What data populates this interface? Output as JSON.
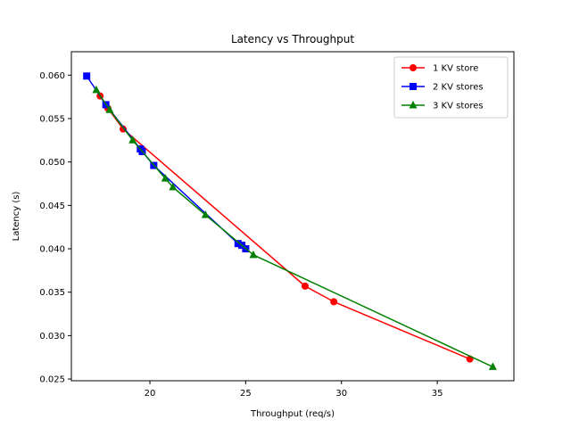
{
  "chart_data": {
    "type": "line",
    "title": "Latency vs Throughput",
    "xlabel": "Throughput (req/s)",
    "ylabel": "Latency (s)",
    "xlim": [
      15.9,
      39.0
    ],
    "ylim": [
      0.0248,
      0.0627
    ],
    "xticks": [
      20,
      25,
      30,
      35
    ],
    "xtick_labels": [
      "20",
      "25",
      "30",
      "35"
    ],
    "yticks": [
      0.025,
      0.03,
      0.035,
      0.04,
      0.045,
      0.05,
      0.055,
      0.06
    ],
    "ytick_labels": [
      "0.025",
      "0.030",
      "0.035",
      "0.040",
      "0.045",
      "0.050",
      "0.055",
      "0.060"
    ],
    "grid": false,
    "legend_position": "top-right",
    "series": [
      {
        "name": "1 KV store",
        "color": "#ff0000",
        "marker": "circle",
        "points": [
          {
            "x": 17.4,
            "y": 0.0576
          },
          {
            "x": 17.8,
            "y": 0.0562
          },
          {
            "x": 18.6,
            "y": 0.0538
          },
          {
            "x": 28.1,
            "y": 0.0357
          },
          {
            "x": 29.6,
            "y": 0.0339
          },
          {
            "x": 36.7,
            "y": 0.0273
          }
        ]
      },
      {
        "name": "2 KV stores",
        "color": "#0000ff",
        "marker": "square",
        "points": [
          {
            "x": 16.7,
            "y": 0.0599
          },
          {
            "x": 17.7,
            "y": 0.0566
          },
          {
            "x": 19.5,
            "y": 0.0515
          },
          {
            "x": 19.6,
            "y": 0.0512
          },
          {
            "x": 20.2,
            "y": 0.0496
          },
          {
            "x": 24.6,
            "y": 0.0406
          },
          {
            "x": 24.8,
            "y": 0.0404
          },
          {
            "x": 25.0,
            "y": 0.04
          }
        ]
      },
      {
        "name": "3 KV stores",
        "color": "#008000",
        "marker": "triangle",
        "points": [
          {
            "x": 17.2,
            "y": 0.0583
          },
          {
            "x": 17.9,
            "y": 0.056
          },
          {
            "x": 19.1,
            "y": 0.0525
          },
          {
            "x": 20.8,
            "y": 0.0481
          },
          {
            "x": 21.2,
            "y": 0.0471
          },
          {
            "x": 22.9,
            "y": 0.0439
          },
          {
            "x": 25.4,
            "y": 0.0393
          },
          {
            "x": 37.9,
            "y": 0.0264
          }
        ]
      }
    ]
  }
}
